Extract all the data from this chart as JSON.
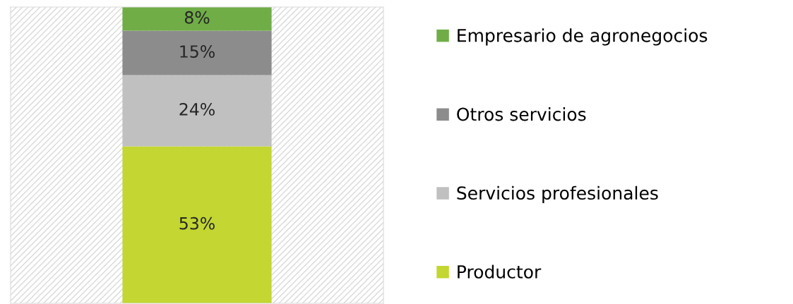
{
  "chart_data": {
    "type": "bar",
    "stacked": true,
    "categories": [
      null
    ],
    "ylim": [
      0,
      100
    ],
    "legend": "right",
    "grid": false,
    "series": [
      {
        "name": "Productor",
        "color": "#c3d631",
        "values": [
          53
        ],
        "value_labels": [
          "53%"
        ]
      },
      {
        "name": "Servicios profesionales",
        "color": "#c0c0c0",
        "values": [
          24
        ],
        "value_labels": [
          "24%"
        ]
      },
      {
        "name": "Otros servicios",
        "color": "#8c8c8c",
        "values": [
          15
        ],
        "value_labels": [
          "15%"
        ]
      },
      {
        "name": "Empresario de agronegocios",
        "color": "#70ad47",
        "values": [
          8
        ],
        "value_labels": [
          "8%"
        ]
      }
    ]
  }
}
